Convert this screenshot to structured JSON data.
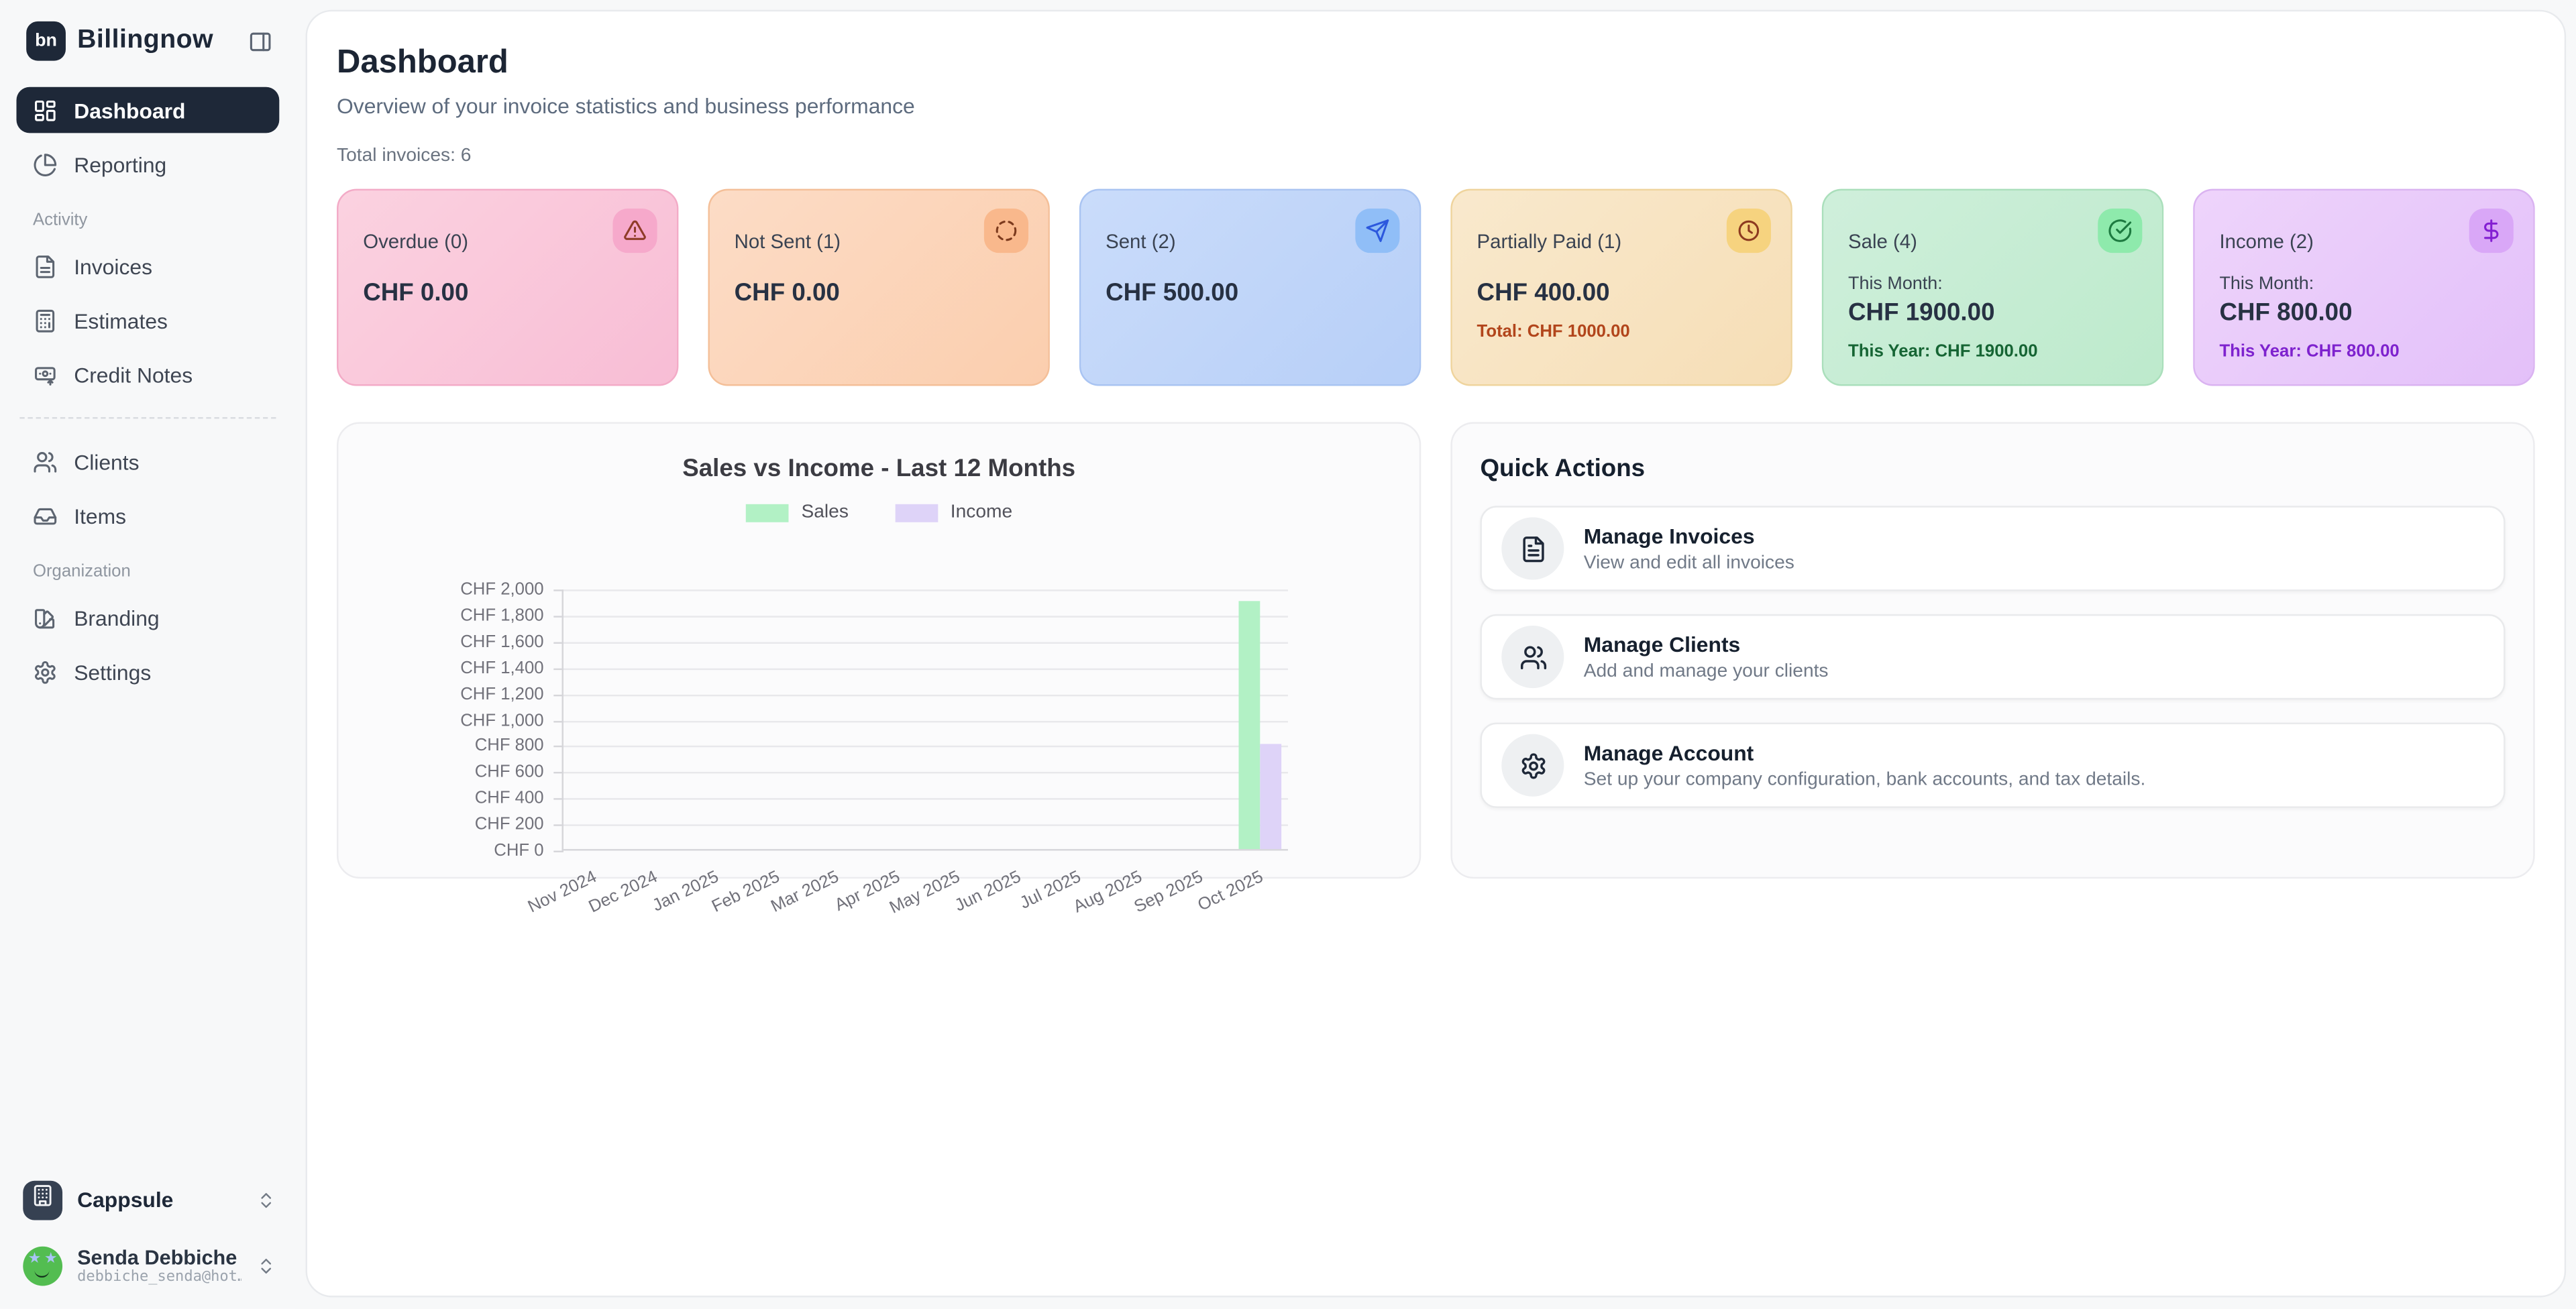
{
  "sidebar": {
    "logo_badge": "bn",
    "logo_text": "Billingnow",
    "nav": [
      {
        "type": "item",
        "label": "Dashboard",
        "icon": "dashboard",
        "active": true
      },
      {
        "type": "item",
        "label": "Reporting",
        "icon": "reporting",
        "active": false
      },
      {
        "type": "section",
        "label": "Activity"
      },
      {
        "type": "item",
        "label": "Invoices",
        "icon": "invoices",
        "active": false
      },
      {
        "type": "item",
        "label": "Estimates",
        "icon": "estimates",
        "active": false
      },
      {
        "type": "item",
        "label": "Credit Notes",
        "icon": "credit-notes",
        "active": false
      },
      {
        "type": "divider"
      },
      {
        "type": "item",
        "label": "Clients",
        "icon": "clients",
        "active": false
      },
      {
        "type": "item",
        "label": "Items",
        "icon": "items",
        "active": false
      },
      {
        "type": "section",
        "label": "Organization"
      },
      {
        "type": "item",
        "label": "Branding",
        "icon": "branding",
        "active": false
      },
      {
        "type": "item",
        "label": "Settings",
        "icon": "settings",
        "active": false
      }
    ],
    "organization": {
      "name": "Cappsule"
    },
    "user": {
      "name": "Senda Debbiche",
      "email": "debbiche_senda@hot…"
    }
  },
  "header": {
    "title": "Dashboard",
    "subtitle": "Overview of your invoice statistics and business performance",
    "total_invoices": "Total invoices: 6"
  },
  "stat_cards": [
    {
      "label": "Overdue (0)",
      "amount": "CHF 0.00",
      "icon": "warning",
      "bg1": "#fbd2e0",
      "bg2": "#f8bdd5",
      "border": "#f3abc7",
      "badge": "#f6a9cb",
      "icon_color": "#8f3c28"
    },
    {
      "label": "Not Sent (1)",
      "amount": "CHF 0.00",
      "icon": "dashed-circle",
      "bg1": "#fcdcc6",
      "bg2": "#fbceae",
      "border": "#f4bf98",
      "badge": "#f9b88c",
      "icon_color": "#7c3a1d"
    },
    {
      "label": "Sent (2)",
      "amount": "CHF 500.00",
      "icon": "send",
      "bg1": "#cadcfa",
      "bg2": "#b7cff8",
      "border": "#a9c4f2",
      "badge": "#90bef7",
      "icon_color": "#2c58dd"
    },
    {
      "label": "Partially Paid (1)",
      "amount": "CHF 400.00",
      "sub": "Total: CHF 1000.00",
      "sub_color": "#b2451b",
      "icon": "clock",
      "bg1": "#f9e9cd",
      "bg2": "#f6deb6",
      "border": "#efd49d",
      "badge": "#f6d37f",
      "icon_color": "#8c3a20"
    },
    {
      "label": "Sale (4)",
      "pre": "This Month:",
      "amount": "CHF 1900.00",
      "sub": "This Year: CHF 1900.00",
      "sub_color": "#166534",
      "icon": "check-circle",
      "bg1": "#cfefdb",
      "bg2": "#bdeacc",
      "border": "#aadfbb",
      "badge": "#8eeaac",
      "icon_color": "#1d7a40"
    },
    {
      "label": "Income (2)",
      "pre": "This Month:",
      "amount": "CHF 800.00",
      "sub": "This Year: CHF 800.00",
      "sub_color": "#7e22ce",
      "icon": "dollar",
      "bg1": "#eed4fb",
      "bg2": "#e3c0f9",
      "border": "#dab3f1",
      "badge": "#d9a7f7",
      "icon_color": "#831fd2"
    }
  ],
  "chart_data": {
    "type": "bar",
    "title": "Sales vs Income - Last 12 Months",
    "categories": [
      "Nov 2024",
      "Dec 2024",
      "Jan 2025",
      "Feb 2025",
      "Mar 2025",
      "Apr 2025",
      "May 2025",
      "Jun 2025",
      "Jul 2025",
      "Aug 2025",
      "Sep 2025",
      "Oct 2025"
    ],
    "series": [
      {
        "name": "Sales",
        "color": "#b2f1c5",
        "values": [
          0,
          0,
          0,
          0,
          0,
          0,
          0,
          0,
          0,
          0,
          0,
          1900
        ]
      },
      {
        "name": "Income",
        "color": "#ded3f8",
        "values": [
          0,
          0,
          0,
          0,
          0,
          0,
          0,
          0,
          0,
          0,
          0,
          800
        ]
      }
    ],
    "ylim": [
      0,
      2000
    ],
    "y_tick_labels": [
      "CHF 2,000",
      "CHF 1,800",
      "CHF 1,600",
      "CHF 1,400",
      "CHF 1,200",
      "CHF 1,000",
      "CHF 800",
      "CHF 600",
      "CHF 400",
      "CHF 200",
      "CHF 0"
    ],
    "grid": true,
    "legend_position": "top"
  },
  "quick_actions": {
    "title": "Quick Actions",
    "items": [
      {
        "title": "Manage Invoices",
        "desc": "View and edit all invoices",
        "icon": "file-text"
      },
      {
        "title": "Manage Clients",
        "desc": "Add and manage your clients",
        "icon": "users"
      },
      {
        "title": "Manage Account",
        "desc": "Set up your company configuration, bank accounts, and tax details.",
        "icon": "settings"
      }
    ]
  }
}
